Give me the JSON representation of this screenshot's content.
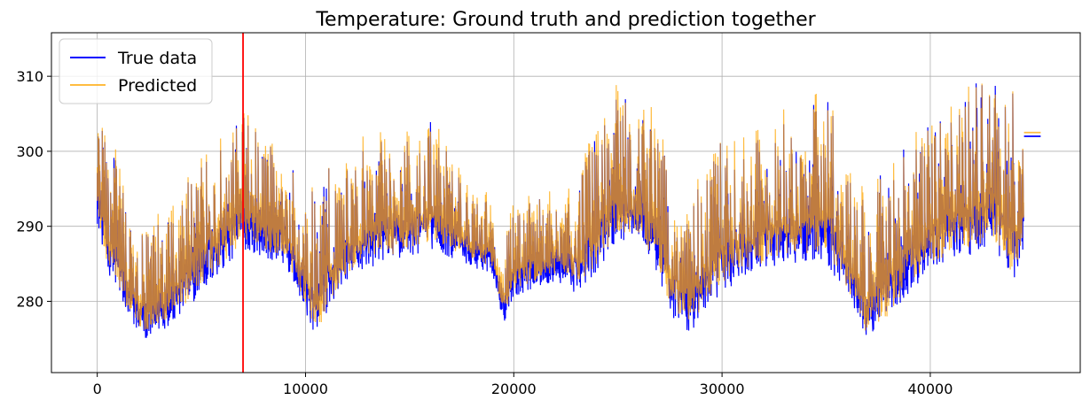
{
  "chart_data": {
    "type": "line",
    "title": "Temperature: Ground truth and prediction together",
    "xlabel": "",
    "ylabel": "",
    "xlim": [
      -2200,
      47200
    ],
    "ylim": [
      270.5,
      315.8
    ],
    "x_ticks": [
      0,
      10000,
      20000,
      30000,
      40000
    ],
    "y_ticks": [
      280,
      290,
      300,
      310
    ],
    "grid": true,
    "legend_position": "top-left",
    "vertical_marker": {
      "x": 7000,
      "color": "#ff0000"
    },
    "n_points": 44500,
    "series": [
      {
        "name": "True data",
        "color": "#0000ff",
        "envelope_x": [
          0,
          500,
          1000,
          1500,
          2000,
          2500,
          3000,
          4000,
          5000,
          6000,
          7000,
          8000,
          9000,
          10000,
          10500,
          11000,
          12000,
          13000,
          14000,
          15000,
          16000,
          17000,
          18000,
          19000,
          19500,
          20000,
          21000,
          22000,
          23000,
          24000,
          25000,
          26000,
          27000,
          27500,
          28000,
          28500,
          29000,
          30000,
          31000,
          32000,
          33000,
          34000,
          35000,
          36000,
          36500,
          37000,
          37500,
          38000,
          39000,
          40000,
          41000,
          42000,
          43000,
          44000,
          44500
        ],
        "envelope_low": [
          289.5,
          283,
          280,
          277,
          275,
          274,
          275,
          277,
          280,
          283,
          286,
          285,
          284,
          278,
          272.5,
          277,
          282,
          283.5,
          284,
          285,
          286,
          285,
          284,
          283,
          276,
          280,
          281,
          282,
          280,
          283,
          287,
          287,
          282,
          277,
          276,
          274,
          277,
          280,
          282,
          283,
          284,
          284,
          284,
          279,
          277,
          273,
          275,
          276,
          280,
          283,
          284,
          285,
          286,
          281,
          286
        ],
        "envelope_high": [
          305,
          302.5,
          300,
          290,
          289,
          290,
          292,
          296,
          302,
          303,
          306,
          302,
          300,
          294,
          298,
          300,
          299,
          302,
          305,
          304,
          305,
          300,
          295,
          294,
          290,
          293,
          294,
          296,
          298,
          304,
          309,
          309,
          304,
          300,
          296,
          298,
          298,
          303,
          304,
          305,
          306,
          305,
          311,
          303,
          296,
          296,
          298,
          298,
          302,
          305,
          308,
          310,
          313.5,
          309,
          302
        ],
        "tail": {
          "x": [
            44500,
            45300
          ],
          "y": 302
        }
      },
      {
        "name": "Predicted",
        "color": "#ffa500",
        "envelope_x": [
          0,
          500,
          1000,
          1500,
          2000,
          2500,
          3000,
          4000,
          5000,
          6000,
          7000,
          8000,
          9000,
          10000,
          10500,
          11000,
          12000,
          13000,
          14000,
          15000,
          16000,
          17000,
          18000,
          19000,
          19500,
          20000,
          21000,
          22000,
          23000,
          24000,
          25000,
          26000,
          27000,
          27500,
          28000,
          28500,
          29000,
          30000,
          31000,
          32000,
          33000,
          34000,
          35000,
          36000,
          36500,
          37000,
          37500,
          38000,
          39000,
          40000,
          41000,
          42000,
          43000,
          44000,
          44500
        ],
        "envelope_low": [
          290,
          284,
          281,
          278,
          276,
          275,
          276,
          278,
          281,
          284,
          287,
          286,
          285,
          279,
          273.5,
          278,
          283,
          284.5,
          285,
          286,
          287,
          286,
          285,
          284,
          277,
          281,
          282,
          283,
          281,
          284,
          288,
          288,
          283,
          278,
          277,
          275,
          278,
          281,
          283,
          284,
          285,
          285,
          285,
          280,
          278,
          274,
          276,
          277,
          281,
          284,
          285,
          286,
          287,
          282,
          287
        ],
        "envelope_high": [
          306,
          303,
          301,
          291,
          290,
          291,
          293,
          297,
          303,
          304,
          307,
          303,
          301,
          295,
          299,
          301,
          300,
          303,
          306,
          305,
          306,
          301,
          296,
          295,
          291,
          294,
          295,
          297,
          299,
          305,
          310,
          310,
          305,
          301,
          297,
          299,
          299,
          304,
          305,
          306,
          307,
          306,
          311.5,
          304,
          297,
          297,
          299,
          299,
          303,
          306,
          309,
          310,
          314,
          310,
          303
        ],
        "tail": {
          "x": [
            44500,
            45300
          ],
          "y": 302.5
        }
      }
    ]
  }
}
